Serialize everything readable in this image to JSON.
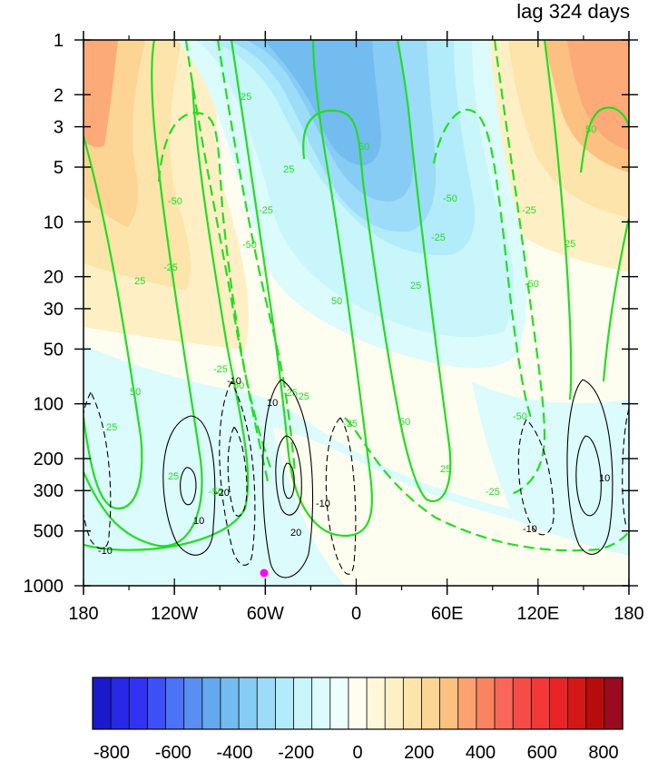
{
  "chart_data": {
    "type": "heatmap",
    "title": "lag 324 days",
    "xlabel": "",
    "ylabel": "",
    "x_ticks": [
      "180",
      "120W",
      "60W",
      "0",
      "60E",
      "120E",
      "180"
    ],
    "y_ticks": [
      "1",
      "2",
      "3",
      "5",
      "10",
      "20",
      "30",
      "50",
      "100",
      "200",
      "300",
      "500",
      "1000"
    ],
    "y_scale": "log",
    "y_axis": "pressure, reversed (1 at top, 1000 at bottom)",
    "colorbar": {
      "min": -800,
      "max": 800,
      "interval": 50,
      "tick_labels": [
        "-800",
        "-600",
        "-400",
        "-200",
        "0",
        "200",
        "400",
        "600",
        "800"
      ],
      "colors": [
        "#1a1acc",
        "#2828e6",
        "#3232f5",
        "#3c50f8",
        "#4c72f5",
        "#5a8ef0",
        "#64a8ee",
        "#72bcf0",
        "#86ccf5",
        "#9cdcf8",
        "#b2ecfa",
        "#c8f6fb",
        "#dcfbfc",
        "#eefefe",
        "#fefef0",
        "#fef8d8",
        "#fef0c4",
        "#fde4aa",
        "#fcd494",
        "#fcc080",
        "#fba270",
        "#f98460",
        "#f86858",
        "#f64c48",
        "#f23838",
        "#e82424",
        "#d41818",
        "#b80c0c",
        "#9c0a20"
      ]
    },
    "markers": [
      {
        "label": "point",
        "lon": -60,
        "pressure": 900,
        "color": "#ff00ff"
      }
    ],
    "green_contours": {
      "color": "#22dd22",
      "labels": [
        "-50",
        "-25",
        "-50",
        "-25",
        "25",
        "50",
        "25",
        "25",
        "50",
        "-25",
        "-50",
        "-25",
        "25",
        "50",
        "25",
        "50",
        "-25",
        "-50",
        "-25",
        "25",
        "50",
        "-25",
        "25",
        "50",
        "25",
        "-50",
        "-25",
        "-50",
        "-25",
        "25",
        "50",
        "25",
        "50",
        "25",
        "-25",
        "-50",
        "25"
      ]
    },
    "black_contours": {
      "color": "#000000",
      "labels": [
        "-10",
        "10",
        "-10",
        "-20",
        "10",
        "20",
        "-10",
        "-10",
        "10",
        "-10",
        "10",
        "20",
        "10",
        "-10"
      ]
    }
  }
}
